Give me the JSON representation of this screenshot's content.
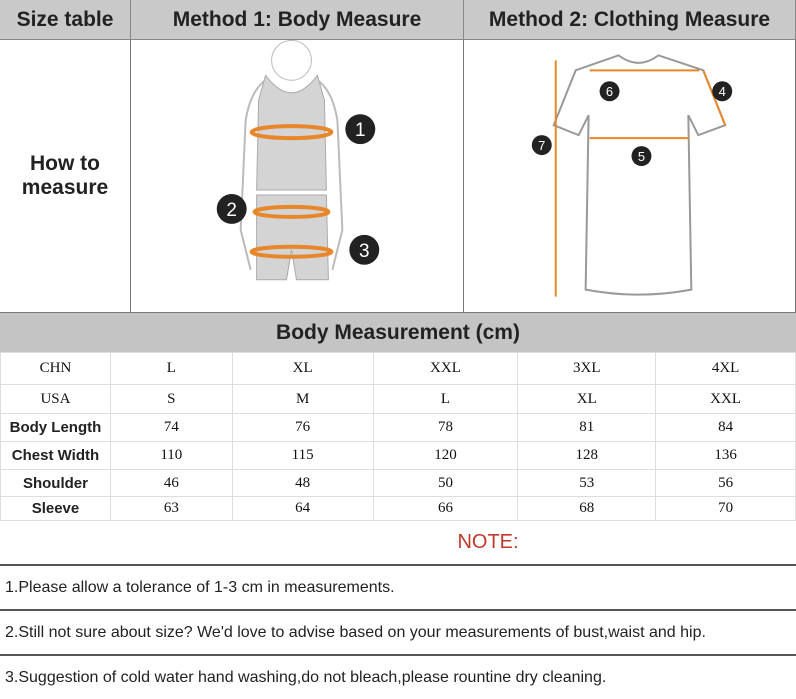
{
  "header": {
    "col1": "Size table",
    "col2": "Method 1: Body  Measure",
    "col3": "Method 2: Clothing Measure"
  },
  "how_to": {
    "line1": "How to",
    "line2": "measure"
  },
  "body_markers": [
    "1",
    "2",
    "3"
  ],
  "clothing_markers": [
    "4",
    "5",
    "6",
    "7"
  ],
  "band_title": "Body Measurement (cm)",
  "table": {
    "rows": [
      {
        "label": "CHN",
        "values": [
          "L",
          "XL",
          "XXL",
          "3XL",
          "4XL"
        ]
      },
      {
        "label": "USA",
        "values": [
          "S",
          "M",
          "L",
          "XL",
          "XXL"
        ]
      },
      {
        "label": "Body Length",
        "values": [
          "74",
          "76",
          "78",
          "81",
          "84"
        ]
      },
      {
        "label": "Chest Width",
        "values": [
          "110",
          "115",
          "120",
          "128",
          "136"
        ]
      },
      {
        "label": "Shoulder",
        "values": [
          "46",
          "48",
          "50",
          "53",
          "56"
        ]
      },
      {
        "label": "Sleeve",
        "values": [
          "63",
          "64",
          "66",
          "68",
          "70"
        ]
      }
    ]
  },
  "note": {
    "title": "NOTE:",
    "color": "#c0392b",
    "items": [
      "1.Please allow a tolerance of 1-3 cm in measurements.",
      "2.Still not sure about size? We'd love to advise based on your measurements of bust,waist and hip.",
      "3.Suggestion of cold water hand washing,do not bleach,please rountine dry cleaning."
    ]
  },
  "accent": "#e8862a"
}
